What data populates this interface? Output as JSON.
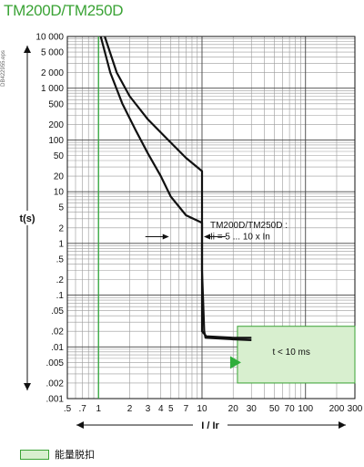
{
  "header": {
    "title": "TM200D/TM250D",
    "side_code": "DB422955.eps"
  },
  "legend": {
    "label": "能量脱扣"
  },
  "chart_data": {
    "type": "line",
    "title": "TM200D/TM250D",
    "xlabel": "I / Ir",
    "ylabel": "t(s)",
    "x_scale": "log",
    "y_scale": "log",
    "xlim": [
      0.5,
      300
    ],
    "ylim": [
      0.001,
      10000
    ],
    "grid": true,
    "x_ticks": [
      {
        "v": 0.5,
        "label": ".5"
      },
      {
        "v": 0.7,
        "label": ".7"
      },
      {
        "v": 1,
        "label": "1"
      },
      {
        "v": 2,
        "label": "2"
      },
      {
        "v": 3,
        "label": "3"
      },
      {
        "v": 4,
        "label": "4"
      },
      {
        "v": 5,
        "label": "5"
      },
      {
        "v": 7,
        "label": "7"
      },
      {
        "v": 10,
        "label": "10"
      },
      {
        "v": 20,
        "label": "20"
      },
      {
        "v": 30,
        "label": "30"
      },
      {
        "v": 50,
        "label": "50"
      },
      {
        "v": 70,
        "label": "70"
      },
      {
        "v": 100,
        "label": "100"
      },
      {
        "v": 200,
        "label": "200"
      },
      {
        "v": 300,
        "label": "300"
      }
    ],
    "y_ticks": [
      {
        "v": 10000,
        "label": "10 000"
      },
      {
        "v": 5000,
        "label": "5 000"
      },
      {
        "v": 2000,
        "label": "2 000"
      },
      {
        "v": 1000,
        "label": "1 000"
      },
      {
        "v": 500,
        "label": "500"
      },
      {
        "v": 200,
        "label": "200"
      },
      {
        "v": 100,
        "label": "100"
      },
      {
        "v": 50,
        "label": "50"
      },
      {
        "v": 20,
        "label": "20"
      },
      {
        "v": 10,
        "label": "10"
      },
      {
        "v": 5,
        "label": "5"
      },
      {
        "v": 2,
        "label": "2"
      },
      {
        "v": 1,
        "label": "1"
      },
      {
        "v": 0.5,
        "label": ".5"
      },
      {
        "v": 0.2,
        "label": ".2"
      },
      {
        "v": 0.1,
        "label": ".1"
      },
      {
        "v": 0.05,
        "label": ".05"
      },
      {
        "v": 0.02,
        "label": ".02"
      },
      {
        "v": 0.01,
        "label": ".01"
      },
      {
        "v": 0.005,
        "label": ".005"
      },
      {
        "v": 0.002,
        "label": ".002"
      },
      {
        "v": 0.001,
        "label": ".001"
      }
    ],
    "green_reference_line_x": 1,
    "series": [
      {
        "points": [
          [
            1.05,
            10000
          ],
          [
            1.3,
            2000
          ],
          [
            1.7,
            500
          ],
          [
            2.3,
            150
          ],
          [
            3.0,
            55
          ],
          [
            4.0,
            20
          ],
          [
            5.0,
            8
          ],
          [
            7.0,
            3.5
          ],
          [
            10,
            2.5
          ],
          [
            10,
            0.02
          ],
          [
            11,
            0.016
          ],
          [
            20,
            0.015
          ],
          [
            30,
            0.015
          ]
        ]
      },
      {
        "points": [
          [
            1.15,
            10000
          ],
          [
            1.5,
            2000
          ],
          [
            2.0,
            700
          ],
          [
            3.0,
            250
          ],
          [
            4.5,
            110
          ],
          [
            7.0,
            45
          ],
          [
            10,
            25
          ],
          [
            10,
            0.3
          ],
          [
            10.5,
            0.02
          ],
          [
            10.8,
            0.015
          ],
          [
            20,
            0.014
          ],
          [
            30,
            0.0135
          ]
        ]
      }
    ],
    "annotations": [
      {
        "text": "TM200D/TM250D :",
        "x": 12,
        "y": 2
      },
      {
        "text": "Ii = 5 ... 10 x In",
        "x": 12,
        "y": 1.2
      },
      {
        "text": "t < 10 ms",
        "x": 48,
        "y": 0.007
      }
    ],
    "magnetic_band": {
      "x_range": [
        5,
        10
      ]
    },
    "shaded_region": {
      "x_range": [
        22,
        300
      ],
      "y_range": [
        0.002,
        0.025
      ],
      "color": "#d8efcf",
      "border": "#3aa335"
    },
    "marker_color": "#2fae3a"
  }
}
